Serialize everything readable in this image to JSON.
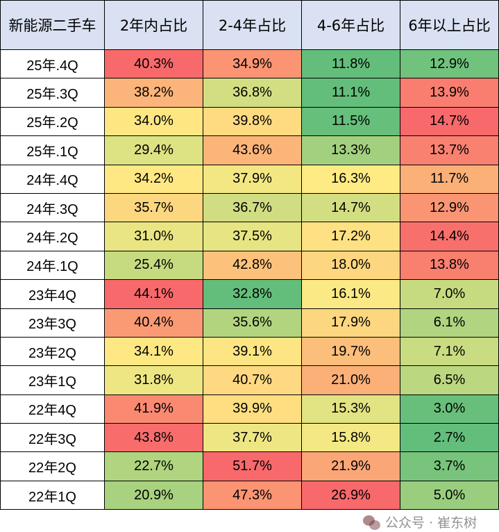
{
  "table": {
    "headers": [
      "新能源二手车",
      "2年内占比",
      "2-4年占比",
      "4-6年占比",
      "6年以上占比"
    ],
    "header_bg": "#D9E1F2",
    "rows": [
      {
        "label": "25年.4Q",
        "values": [
          "40.3%",
          "34.9%",
          "11.8%",
          "12.9%"
        ],
        "colors": [
          "#F8696B",
          "#FA9473",
          "#63BE7B",
          "#70C27C"
        ]
      },
      {
        "label": "25年.3Q",
        "values": [
          "38.2%",
          "36.8%",
          "11.1%",
          "13.9%"
        ],
        "colors": [
          "#FBB479",
          "#D3DE82",
          "#63BE7B",
          "#F97E6F"
        ]
      },
      {
        "label": "25年.2Q",
        "values": [
          "34.0%",
          "39.8%",
          "11.5%",
          "14.7%"
        ],
        "colors": [
          "#FEE783",
          "#FEDA80",
          "#66BF7B",
          "#F8696B"
        ]
      },
      {
        "label": "25年.1Q",
        "values": [
          "29.4%",
          "43.6%",
          "13.3%",
          "13.7%"
        ],
        "colors": [
          "#DDE283",
          "#FCB579",
          "#A3D07F",
          "#F98170"
        ]
      },
      {
        "label": "24年.4Q",
        "values": [
          "34.2%",
          "37.9%",
          "16.3%",
          "11.7%"
        ],
        "colors": [
          "#FEE883",
          "#F3E784",
          "#FFEB84",
          "#FBB078"
        ]
      },
      {
        "label": "24年.3Q",
        "values": [
          "35.7%",
          "36.7%",
          "14.7%",
          "12.9%"
        ],
        "colors": [
          "#FDD680",
          "#D0DD82",
          "#D3DE82",
          "#FA9574"
        ]
      },
      {
        "label": "24年.2Q",
        "values": [
          "31.0%",
          "37.5%",
          "17.2%",
          "14.4%"
        ],
        "colors": [
          "#E9E583",
          "#E7E483",
          "#FEE182",
          "#F8706C"
        ]
      },
      {
        "label": "24年.1Q",
        "values": [
          "25.4%",
          "42.8%",
          "18.0%",
          "13.8%"
        ],
        "colors": [
          "#C6DB80",
          "#FCC27C",
          "#FDD680",
          "#F97F6F"
        ]
      },
      {
        "label": "23年4Q",
        "values": [
          "44.1%",
          "32.8%",
          "16.1%",
          "7.0%"
        ],
        "colors": [
          "#F8696B",
          "#63BE7B",
          "#FAE984",
          "#C6DB80"
        ]
      },
      {
        "label": "23年3Q",
        "values": [
          "40.4%",
          "35.6%",
          "17.9%",
          "6.1%"
        ],
        "colors": [
          "#FA9A75",
          "#B2D47F",
          "#FDD680",
          "#B0D47F"
        ]
      },
      {
        "label": "23年2Q",
        "values": [
          "34.1%",
          "39.1%",
          "19.7%",
          "7.1%"
        ],
        "colors": [
          "#FEE883",
          "#FEE583",
          "#FCBE7B",
          "#C9DC81"
        ]
      },
      {
        "label": "23年1Q",
        "values": [
          "31.8%",
          "40.7%",
          "21.0%",
          "6.5%"
        ],
        "colors": [
          "#EEE683",
          "#FED981",
          "#FBB078",
          "#BBD780"
        ]
      },
      {
        "label": "22年4Q",
        "values": [
          "41.9%",
          "39.9%",
          "15.3%",
          "3.0%"
        ],
        "colors": [
          "#F98A71",
          "#FEDE81",
          "#E2E383",
          "#67BF7B"
        ]
      },
      {
        "label": "22年3Q",
        "values": [
          "43.8%",
          "37.7%",
          "15.8%",
          "2.7%"
        ],
        "colors": [
          "#F86D6C",
          "#EEE683",
          "#F3E884",
          "#63BE7B"
        ]
      },
      {
        "label": "22年2Q",
        "values": [
          "22.7%",
          "51.7%",
          "21.9%",
          "3.7%"
        ],
        "colors": [
          "#B0D47F",
          "#F8696B",
          "#FBA677",
          "#78C47C"
        ]
      },
      {
        "label": "22年1Q",
        "values": [
          "20.9%",
          "47.3%",
          "26.9%",
          "5.0%"
        ],
        "colors": [
          "#A8D27F",
          "#FA9473",
          "#F8696B",
          "#9ACE7E"
        ]
      }
    ]
  },
  "watermark": {
    "icon": "wechat-icon",
    "text": "公众号 · 崔东树"
  }
}
